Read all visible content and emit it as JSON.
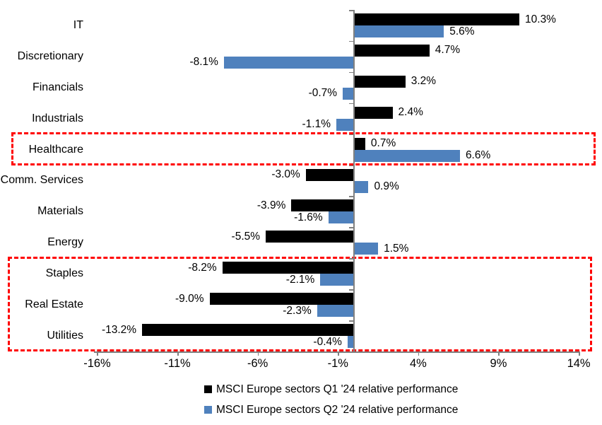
{
  "chart_data": {
    "type": "bar",
    "orientation": "horizontal",
    "title": "",
    "categories": [
      "IT",
      "Discretionary",
      "Financials",
      "Industrials",
      "Healthcare",
      "Comm. Services",
      "Materials",
      "Energy",
      "Staples",
      "Real Estate",
      "Utilities"
    ],
    "series": [
      {
        "name": "MSCI Europe sectors Q1 '24 relative performance",
        "color": "#000000",
        "values": [
          10.3,
          4.7,
          3.2,
          2.4,
          0.7,
          -3.0,
          -3.9,
          -5.5,
          -8.2,
          -9.0,
          -13.2
        ]
      },
      {
        "name": "MSCI Europe sectors Q2 '24 relative performance",
        "color": "#4f81bd",
        "values": [
          5.6,
          -8.1,
          -0.7,
          -1.1,
          6.6,
          0.9,
          -1.6,
          1.5,
          -2.1,
          -2.3,
          -0.4
        ]
      }
    ],
    "value_label_format": "0.0%",
    "x_ticks": [
      {
        "label": "-16%",
        "value": -16
      },
      {
        "label": "-11%",
        "value": -11
      },
      {
        "label": "-6%",
        "value": -6
      },
      {
        "label": "-1%",
        "value": -1
      },
      {
        "label": "4%",
        "value": 4
      },
      {
        "label": "9%",
        "value": 9
      },
      {
        "label": "14%",
        "value": 14
      }
    ],
    "xlim": [
      -16,
      14
    ],
    "grid": false,
    "legend_position": "bottom",
    "axis_color": "#808080",
    "highlight_color": "#ff0000",
    "highlights": [
      {
        "name": "healthcare-highlight",
        "category_rows": [
          4
        ]
      },
      {
        "name": "defensives-highlight",
        "category_rows": [
          8,
          9,
          10
        ]
      }
    ]
  }
}
